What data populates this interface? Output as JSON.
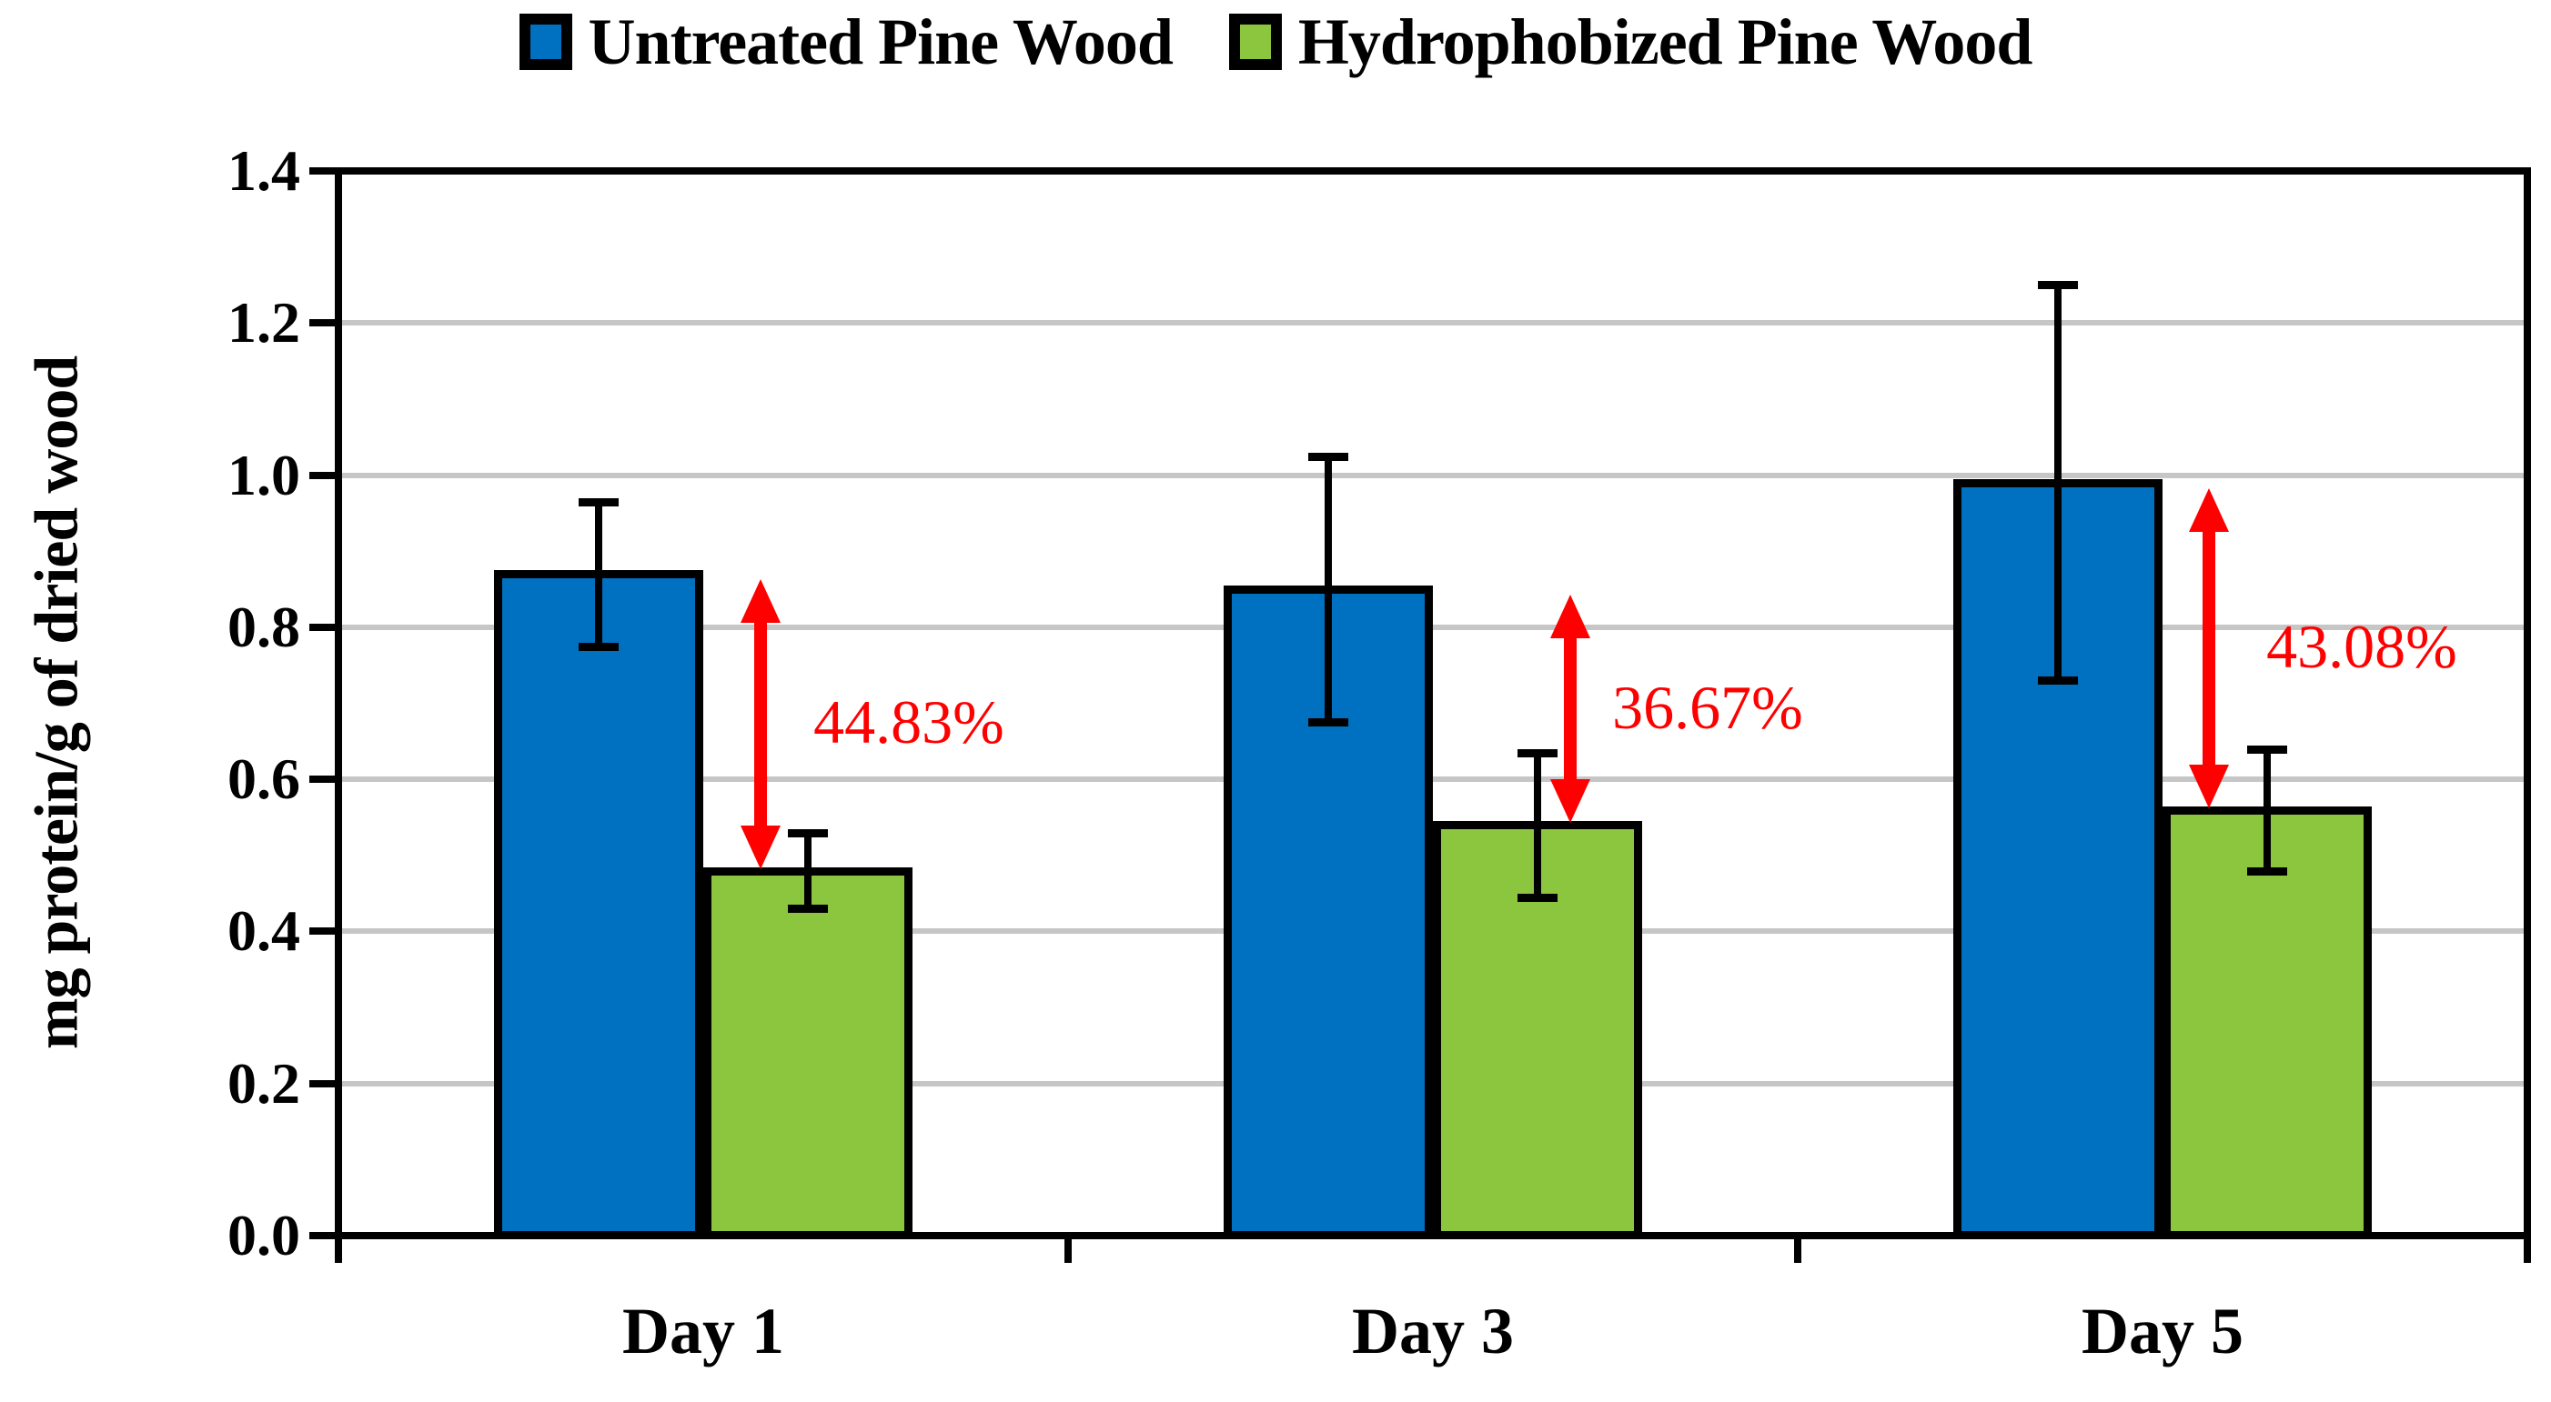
{
  "figure": {
    "background": "#FFFFFF",
    "y_axis_title": "mg protein/g of dried wood"
  },
  "legend": {
    "items": [
      {
        "label": "Untreated Pine Wood",
        "color": "#0070C0"
      },
      {
        "label": "Hydrophobized Pine Wood",
        "color": "#8CC63F"
      }
    ]
  },
  "chart_data": {
    "type": "bar",
    "categories": [
      "Day 1",
      "Day 3",
      "Day 5"
    ],
    "series": [
      {
        "name": "Untreated Pine Wood",
        "color": "#0070C0",
        "values": [
          0.87,
          0.85,
          0.99
        ],
        "errors": [
          0.095,
          0.175,
          0.26
        ]
      },
      {
        "name": "Hydrophobized Pine Wood",
        "color": "#8CC63F",
        "values": [
          0.48,
          0.54,
          0.56
        ],
        "errors": [
          0.05,
          0.095,
          0.08
        ]
      }
    ],
    "reduction_annotations": [
      {
        "category": "Day 1",
        "label": "44.83%"
      },
      {
        "category": "Day 3",
        "label": "36.67%"
      },
      {
        "category": "Day 5",
        "label": "43.08%"
      }
    ],
    "annotation_color": "#FF0000",
    "error_bar_color": "#000000",
    "gridline_color": "#C6C6C6",
    "title": "",
    "xlabel": "",
    "ylabel": "mg protein/g of dried wood",
    "ylim": [
      0,
      1.4
    ],
    "ytick_step": 0.2,
    "ytick_labels": [
      "0.0",
      "0.2",
      "0.4",
      "0.6",
      "0.8",
      "1.0",
      "1.2",
      "1.4"
    ],
    "grid": true,
    "legend_position": "top"
  }
}
